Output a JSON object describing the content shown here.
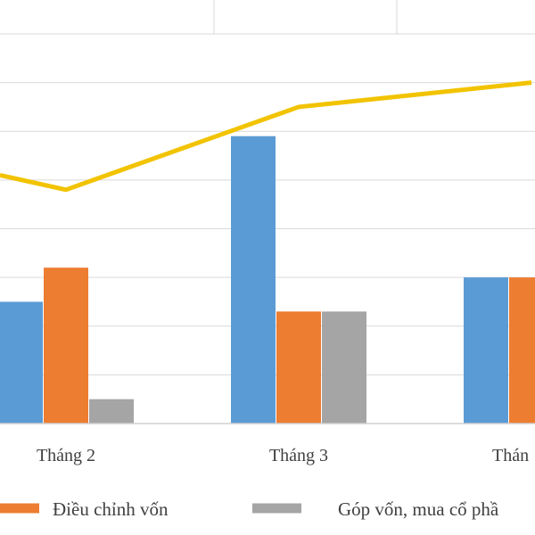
{
  "chart_data": {
    "type": "bar",
    "categories": [
      "Tháng 2",
      "Tháng 3",
      "Thán"
    ],
    "series": [
      {
        "values": [
          2.5,
          5.9,
          3.0
        ],
        "color": "#5B9BD5",
        "kind": "bar"
      },
      {
        "name": "Điều chỉnh vốn",
        "values": [
          3.2,
          2.3,
          3.0
        ],
        "color": "#ED7D31",
        "kind": "bar"
      },
      {
        "name": "Góp vốn, mua cổ phầ",
        "values": [
          0.5,
          2.3,
          0
        ],
        "color": "#A5A5A5",
        "kind": "bar"
      },
      {
        "values": [
          4.8,
          6.5,
          7.0
        ],
        "color": "#F2C300",
        "kind": "line",
        "left_edge_value": 5.1
      }
    ],
    "ylim": [
      0,
      8
    ],
    "grid": true,
    "legend_position": "bottom",
    "xlabel": "",
    "ylabel": ""
  }
}
